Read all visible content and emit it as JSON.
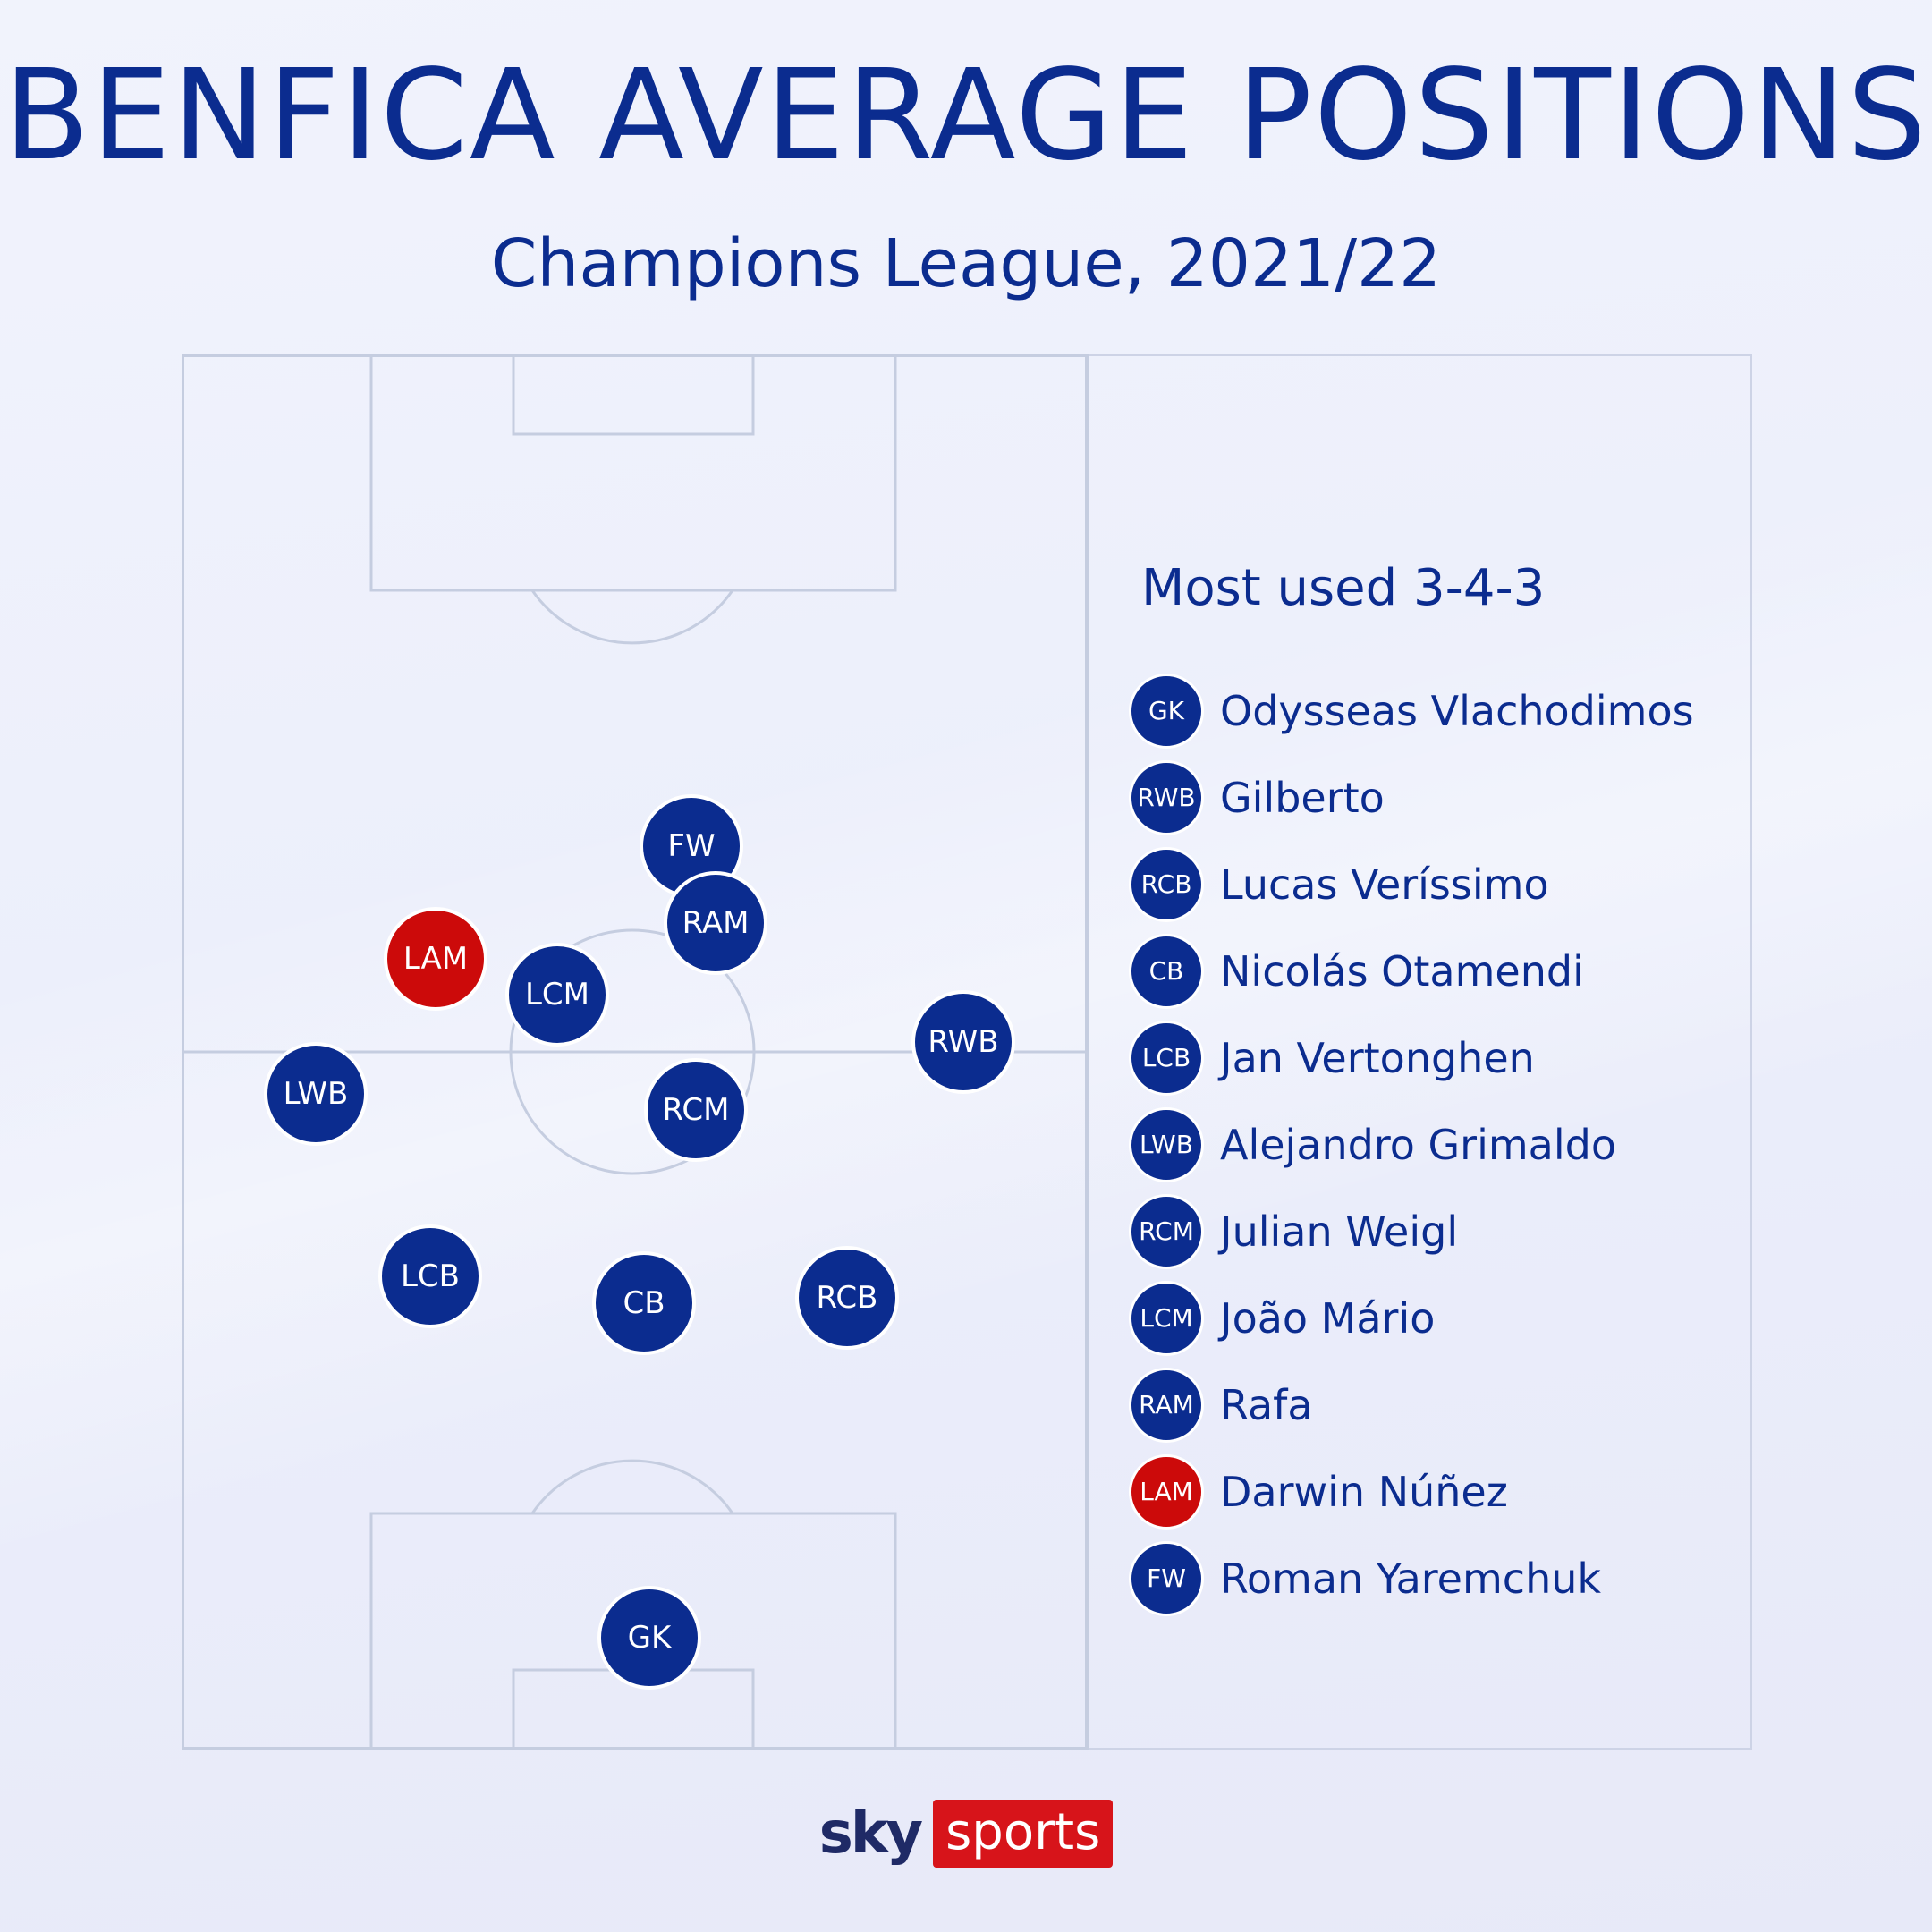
{
  "header": {
    "title": "BENFICA AVERAGE POSITIONS",
    "subtitle": "Champions League, 2021/22"
  },
  "colors": {
    "navy": "#0b2c8f",
    "red": "#cc0a0a",
    "pitch_lines": "#c5cde0"
  },
  "pitch": {
    "players": [
      {
        "pos": "FW",
        "highlight": false
      },
      {
        "pos": "RAM",
        "highlight": false
      },
      {
        "pos": "LAM",
        "highlight": true
      },
      {
        "pos": "LCM",
        "highlight": false
      },
      {
        "pos": "RWB",
        "highlight": false
      },
      {
        "pos": "LWB",
        "highlight": false
      },
      {
        "pos": "RCM",
        "highlight": false
      },
      {
        "pos": "LCB",
        "highlight": false
      },
      {
        "pos": "CB",
        "highlight": false
      },
      {
        "pos": "RCB",
        "highlight": false
      },
      {
        "pos": "GK",
        "highlight": false
      }
    ]
  },
  "legend": {
    "title": "Most used 3-4-3",
    "items": [
      {
        "pos": "GK",
        "name": "Odysseas Vlachodimos",
        "highlight": false
      },
      {
        "pos": "RWB",
        "name": "Gilberto",
        "highlight": false
      },
      {
        "pos": "RCB",
        "name": "Lucas Veríssimo",
        "highlight": false
      },
      {
        "pos": "CB",
        "name": "Nicolás Otamendi",
        "highlight": false
      },
      {
        "pos": "LCB",
        "name": "Jan Vertonghen",
        "highlight": false
      },
      {
        "pos": "LWB",
        "name": "Alejandro Grimaldo",
        "highlight": false
      },
      {
        "pos": "RCM",
        "name": "Julian Weigl",
        "highlight": false
      },
      {
        "pos": "LCM",
        "name": "João Mário",
        "highlight": false
      },
      {
        "pos": "RAM",
        "name": "Rafa",
        "highlight": false
      },
      {
        "pos": "LAM",
        "name": "Darwin Núñez",
        "highlight": true
      },
      {
        "pos": "FW",
        "name": "Roman Yaremchuk",
        "highlight": false
      }
    ]
  },
  "footer": {
    "logo_sky": "sky",
    "logo_sports": "sports"
  }
}
